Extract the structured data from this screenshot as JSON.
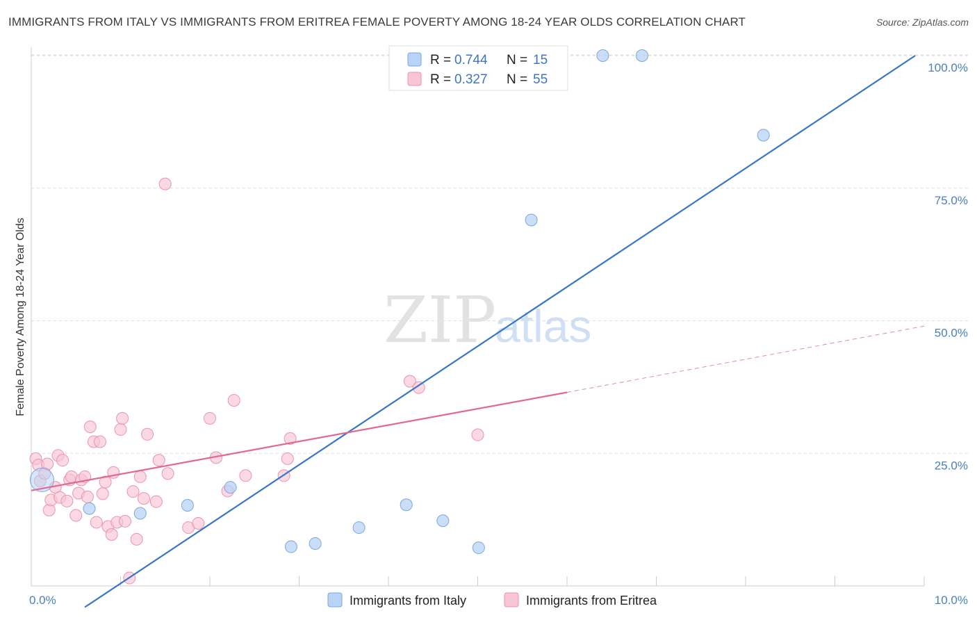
{
  "title": "IMMIGRANTS FROM ITALY VS IMMIGRANTS FROM ERITREA FEMALE POVERTY AMONG 18-24 YEAR OLDS CORRELATION CHART",
  "source": "Source: ZipAtlas.com",
  "watermark": {
    "zip": "ZIP",
    "atlas": "atlas"
  },
  "colors": {
    "italy_fill": "#b8d3f5",
    "italy_stroke": "#7aa7dd",
    "italy_line": "#3575cc",
    "eritrea_fill": "#f8c5d4",
    "eritrea_stroke": "#eb93b0",
    "eritrea_line": "#e06892",
    "tick_label": "#4a7fc1",
    "grid": "#dcdcdc"
  },
  "legend": {
    "r_label": "R =",
    "n_label": "N =",
    "italy": {
      "r": "0.744",
      "n": "15"
    },
    "eritrea": {
      "r": "0.327",
      "n": "55"
    }
  },
  "chart_data": {
    "type": "scatter",
    "ylabel": "Female Poverty Among 18-24 Year Olds",
    "xlim": [
      0,
      10
    ],
    "ylim": [
      0,
      100
    ],
    "x_ticks": [
      "0.0%",
      "10.0%"
    ],
    "y_ticks": [
      {
        "value": 25,
        "label": "25.0%"
      },
      {
        "value": 50,
        "label": "50.0%"
      },
      {
        "value": 75,
        "label": "75.0%"
      },
      {
        "value": 100,
        "label": "100.0%"
      }
    ],
    "grid": true,
    "legend_position": "top-center",
    "series": [
      {
        "name": "Immigrants from Italy",
        "points": [
          [
            0.12,
            20.0
          ],
          [
            0.65,
            14.6
          ],
          [
            1.22,
            13.7
          ],
          [
            1.75,
            15.2
          ],
          [
            2.23,
            18.6
          ],
          [
            2.91,
            7.4
          ],
          [
            3.18,
            8.0
          ],
          [
            3.67,
            11.0
          ],
          [
            4.2,
            15.3
          ],
          [
            4.61,
            12.3
          ],
          [
            5.01,
            7.2
          ],
          [
            5.6,
            69.0
          ],
          [
            6.4,
            100.0
          ],
          [
            6.84,
            100.0
          ],
          [
            8.2,
            85.0
          ]
        ],
        "trend": {
          "x0": 0.6,
          "y0": -4.0,
          "x1": 9.9,
          "y1": 100.0,
          "style": "solid"
        }
      },
      {
        "name": "Immigrants from Eritrea",
        "points": [
          [
            0.05,
            24.0
          ],
          [
            0.08,
            22.8
          ],
          [
            0.1,
            19.8
          ],
          [
            0.15,
            21.2
          ],
          [
            0.18,
            23.0
          ],
          [
            0.2,
            14.3
          ],
          [
            0.22,
            16.2
          ],
          [
            0.27,
            18.6
          ],
          [
            0.3,
            24.6
          ],
          [
            0.32,
            16.7
          ],
          [
            0.35,
            23.7
          ],
          [
            0.4,
            16.0
          ],
          [
            0.43,
            20.0
          ],
          [
            0.45,
            20.6
          ],
          [
            0.5,
            13.3
          ],
          [
            0.53,
            17.5
          ],
          [
            0.56,
            20.0
          ],
          [
            0.6,
            20.6
          ],
          [
            0.63,
            16.8
          ],
          [
            0.66,
            30.0
          ],
          [
            0.7,
            27.2
          ],
          [
            0.73,
            12.0
          ],
          [
            0.77,
            27.2
          ],
          [
            0.8,
            17.4
          ],
          [
            0.83,
            19.6
          ],
          [
            0.86,
            11.2
          ],
          [
            0.9,
            9.7
          ],
          [
            0.92,
            21.4
          ],
          [
            0.96,
            12.0
          ],
          [
            1.0,
            29.5
          ],
          [
            1.02,
            31.6
          ],
          [
            1.05,
            12.2
          ],
          [
            1.1,
            1.5
          ],
          [
            1.14,
            17.8
          ],
          [
            1.18,
            8.8
          ],
          [
            1.22,
            20.6
          ],
          [
            1.26,
            16.5
          ],
          [
            1.3,
            28.6
          ],
          [
            1.4,
            15.9
          ],
          [
            1.43,
            23.7
          ],
          [
            1.5,
            75.8
          ],
          [
            1.53,
            21.2
          ],
          [
            1.76,
            11.0
          ],
          [
            1.87,
            11.8
          ],
          [
            2.0,
            31.6
          ],
          [
            2.07,
            24.2
          ],
          [
            2.2,
            17.9
          ],
          [
            2.27,
            35.0
          ],
          [
            2.4,
            20.8
          ],
          [
            2.83,
            20.8
          ],
          [
            2.87,
            24.0
          ],
          [
            2.9,
            27.8
          ],
          [
            4.24,
            38.6
          ],
          [
            4.34,
            37.4
          ],
          [
            5.0,
            28.5
          ]
        ],
        "trend": {
          "x0": 0.0,
          "y0": 18.0,
          "x1": 6.0,
          "y1": 36.5,
          "style": "solid"
        },
        "trend_extension": {
          "x0": 6.0,
          "y0": 36.5,
          "x1": 10.0,
          "y1": 49.0,
          "style": "dashed"
        }
      }
    ]
  }
}
